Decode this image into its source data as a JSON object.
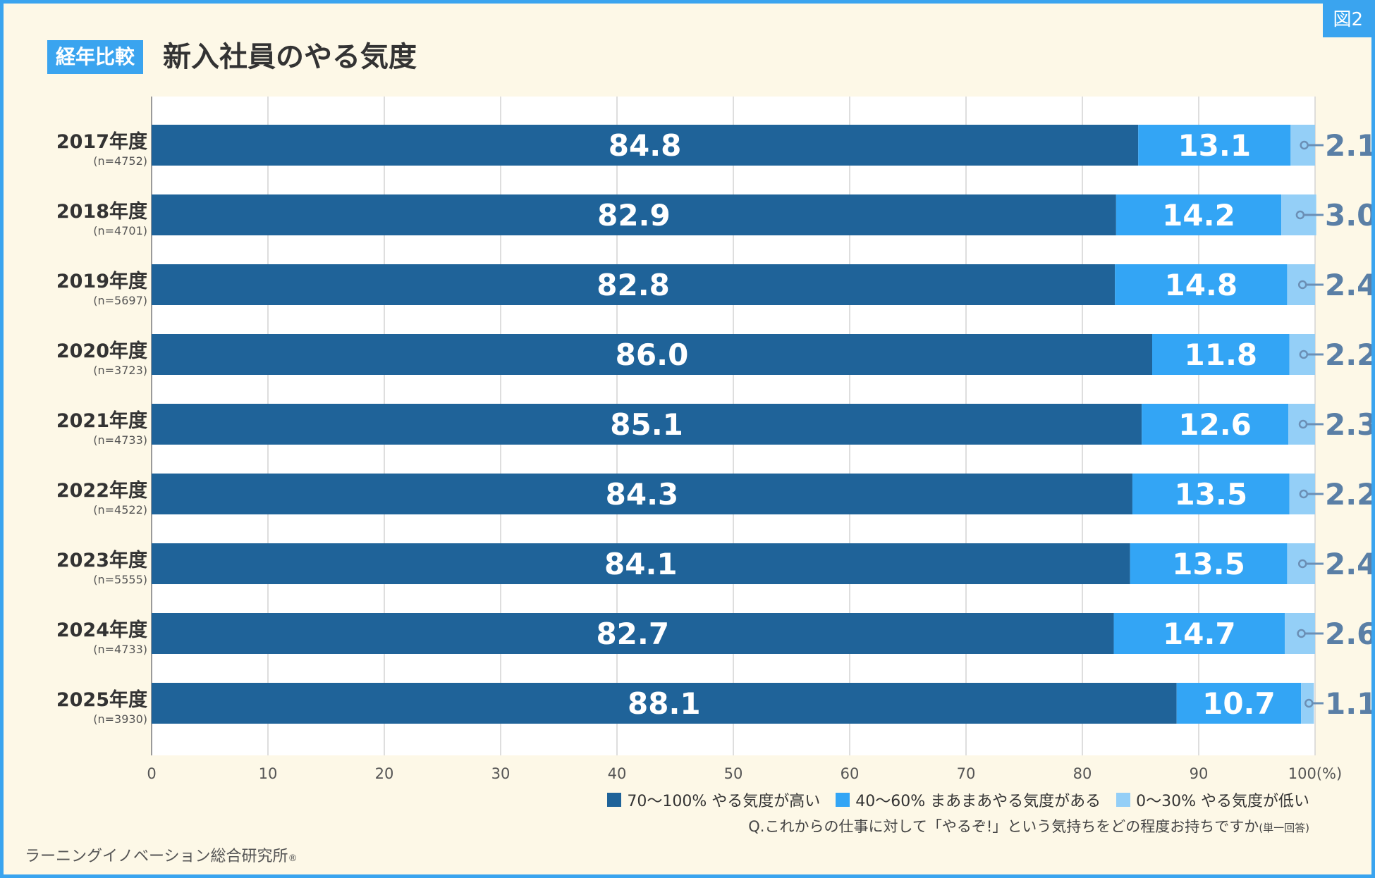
{
  "figure_tag": "図2",
  "badge": "経年比較",
  "title": "新入社員のやる気度",
  "chart_data": {
    "type": "bar",
    "orientation": "horizontal",
    "stacked": true,
    "categories": [
      "2017年度",
      "2018年度",
      "2019年度",
      "2020年度",
      "2021年度",
      "2022年度",
      "2023年度",
      "2024年度",
      "2025年度"
    ],
    "sample_sizes": [
      "(n=4752)",
      "(n=4701)",
      "(n=5697)",
      "(n=3723)",
      "(n=4733)",
      "(n=4522)",
      "(n=5555)",
      "(n=4733)",
      "(n=3930)"
    ],
    "series": [
      {
        "name": "70～100% やる気度が高い",
        "color": "#1f6399",
        "values": [
          84.8,
          82.9,
          82.8,
          86.0,
          85.1,
          84.3,
          84.1,
          82.7,
          88.1
        ],
        "labels": [
          "84.8",
          "82.9",
          "82.8",
          "86.0",
          "85.1",
          "84.3",
          "84.1",
          "82.7",
          "88.1"
        ]
      },
      {
        "name": "40～60% まあまあやる気度がある",
        "color": "#33a5f5",
        "values": [
          13.1,
          14.2,
          14.8,
          11.8,
          12.6,
          13.5,
          13.5,
          14.7,
          10.7
        ],
        "labels": [
          "13.1",
          "14.2",
          "14.8",
          "11.8",
          "12.6",
          "13.5",
          "13.5",
          "14.7",
          "10.7"
        ]
      },
      {
        "name": "0～30% やる気度が低い",
        "color": "#94cff7",
        "values": [
          2.1,
          3.0,
          2.4,
          2.2,
          2.3,
          2.2,
          2.4,
          2.6,
          1.1
        ],
        "labels": [
          "2.1",
          "3.0",
          "2.4",
          "2.2",
          "2.3",
          "2.2",
          "2.4",
          "2.6",
          "1.1"
        ]
      }
    ],
    "xlim": [
      0,
      100
    ],
    "xticks": [
      "0",
      "10",
      "20",
      "30",
      "40",
      "50",
      "60",
      "70",
      "80",
      "90",
      "100(%)"
    ],
    "grid": true,
    "legend_position": "bottom-right"
  },
  "legend": [
    {
      "label": "70～100% やる気度が高い",
      "color": "#1f6399"
    },
    {
      "label": "40～60% まあまあやる気度がある",
      "color": "#33a5f5"
    },
    {
      "label": "0～30% やる気度が低い",
      "color": "#94cff7"
    }
  ],
  "question": "Q.これからの仕事に対して「やるぞ!」という気持ちをどの程度お持ちですか",
  "question_note": "(単一回答)",
  "footer": "ラーニングイノベーション総合研究所",
  "footer_mark": "®"
}
